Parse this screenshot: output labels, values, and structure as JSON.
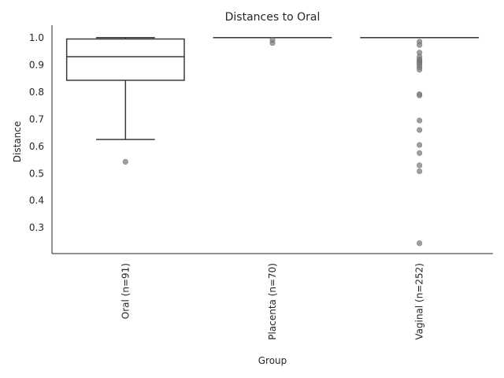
{
  "chart_data": {
    "type": "box",
    "title": "Distances to Oral",
    "xlabel": "Group",
    "ylabel": "Distance",
    "ylim": [
      0.205,
      1.04
    ],
    "yticks": [
      0.3,
      0.4,
      0.5,
      0.6,
      0.7,
      0.8,
      0.9,
      1.0
    ],
    "ytick_labels": [
      "0.3",
      "0.4",
      "0.5",
      "0.6",
      "0.7",
      "0.8",
      "0.9",
      "1.0"
    ],
    "grid": false,
    "line_color": "#3a3a3a",
    "outlier_color": "#7f7f7f",
    "categories": [
      "Oral (n=91)",
      "Placenta (n=70)",
      "Vaginal (n=252)"
    ],
    "boxes": [
      {
        "whisker_low": 0.625,
        "q1": 0.843,
        "median": 0.93,
        "q3": 0.995,
        "whisker_high": 1.0,
        "outliers": [
          0.543
        ]
      },
      {
        "whisker_low": 1.0,
        "q1": 1.0,
        "median": 1.0,
        "q3": 1.0,
        "whisker_high": 1.0,
        "outliers": [
          0.98,
          0.992
        ]
      },
      {
        "whisker_low": 1.0,
        "q1": 1.0,
        "median": 1.0,
        "q3": 1.0,
        "whisker_high": 1.0,
        "outliers": [
          0.985,
          0.973,
          0.945,
          0.93,
          0.92,
          0.915,
          0.91,
          0.905,
          0.898,
          0.89,
          0.882,
          0.792,
          0.787,
          0.695,
          0.66,
          0.605,
          0.575,
          0.53,
          0.508,
          0.243
        ]
      }
    ]
  }
}
